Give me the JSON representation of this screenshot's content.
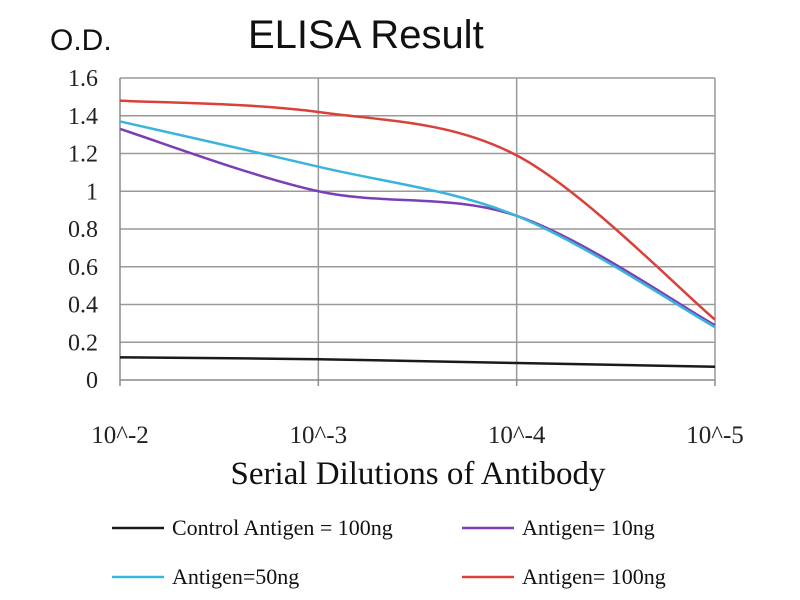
{
  "chart_data": {
    "type": "line",
    "title": "ELISA Result",
    "ylabel": "O.D.",
    "xlabel": "Serial Dilutions of Antibody",
    "x": [
      "10^-2",
      "10^-3",
      "10^-4",
      "10^-5"
    ],
    "ylim": [
      0,
      1.6
    ],
    "yticks": [
      "0",
      "0.2",
      "0.4",
      "0.6",
      "0.8",
      "1",
      "1.2",
      "1.4",
      "1.6"
    ],
    "grid": true,
    "legend_position": "bottom",
    "series": [
      {
        "name": "Control Antigen = 100ng",
        "color": "#1a1a1a",
        "values": [
          0.12,
          0.11,
          0.09,
          0.07
        ]
      },
      {
        "name": "Antigen= 10ng",
        "color": "#7b3fb5",
        "values": [
          1.33,
          1.0,
          0.87,
          0.29
        ]
      },
      {
        "name": "Antigen=50ng",
        "color": "#3ab4dc",
        "values": [
          1.37,
          1.13,
          0.87,
          0.28
        ]
      },
      {
        "name": "Antigen= 100ng",
        "color": "#d9413a",
        "values": [
          1.48,
          1.42,
          1.19,
          0.32
        ]
      }
    ]
  }
}
